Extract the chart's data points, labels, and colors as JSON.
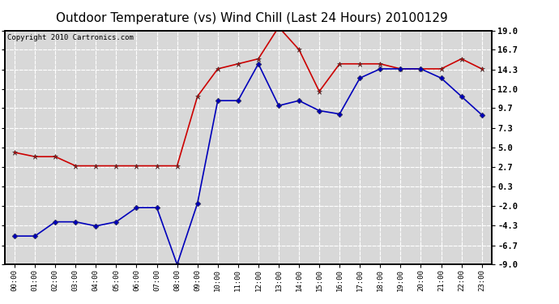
{
  "title": "Outdoor Temperature (vs) Wind Chill (Last 24 Hours) 20100129",
  "copyright": "Copyright 2010 Cartronics.com",
  "x_labels": [
    "00:00",
    "01:00",
    "02:00",
    "03:00",
    "04:00",
    "05:00",
    "06:00",
    "07:00",
    "08:00",
    "09:00",
    "10:00",
    "11:00",
    "12:00",
    "13:00",
    "14:00",
    "15:00",
    "16:00",
    "17:00",
    "18:00",
    "19:00",
    "20:00",
    "21:00",
    "22:00",
    "23:00"
  ],
  "red_data": [
    4.4,
    3.9,
    3.9,
    2.8,
    2.8,
    2.8,
    2.8,
    2.8,
    2.8,
    11.1,
    14.4,
    15.0,
    15.6,
    19.4,
    16.7,
    11.7,
    15.0,
    15.0,
    15.0,
    14.4,
    14.4,
    14.4,
    15.6,
    14.4
  ],
  "blue_data": [
    -5.6,
    -5.6,
    -3.9,
    -3.9,
    -4.4,
    -3.9,
    -2.2,
    -2.2,
    -9.0,
    -1.7,
    10.6,
    10.6,
    15.0,
    10.0,
    10.6,
    9.4,
    9.0,
    13.3,
    14.4,
    14.4,
    14.4,
    13.3,
    11.1,
    8.9
  ],
  "ylim": [
    -9.0,
    19.0
  ],
  "yticks": [
    19.0,
    16.7,
    14.3,
    12.0,
    9.7,
    7.3,
    5.0,
    2.7,
    0.3,
    -2.0,
    -4.3,
    -6.7,
    -9.0
  ],
  "red_color": "#cc0000",
  "blue_color": "#0000bb",
  "bg_color": "#d8d8d8",
  "grid_color": "#ffffff",
  "title_fontsize": 11,
  "copyright_fontsize": 6.5
}
